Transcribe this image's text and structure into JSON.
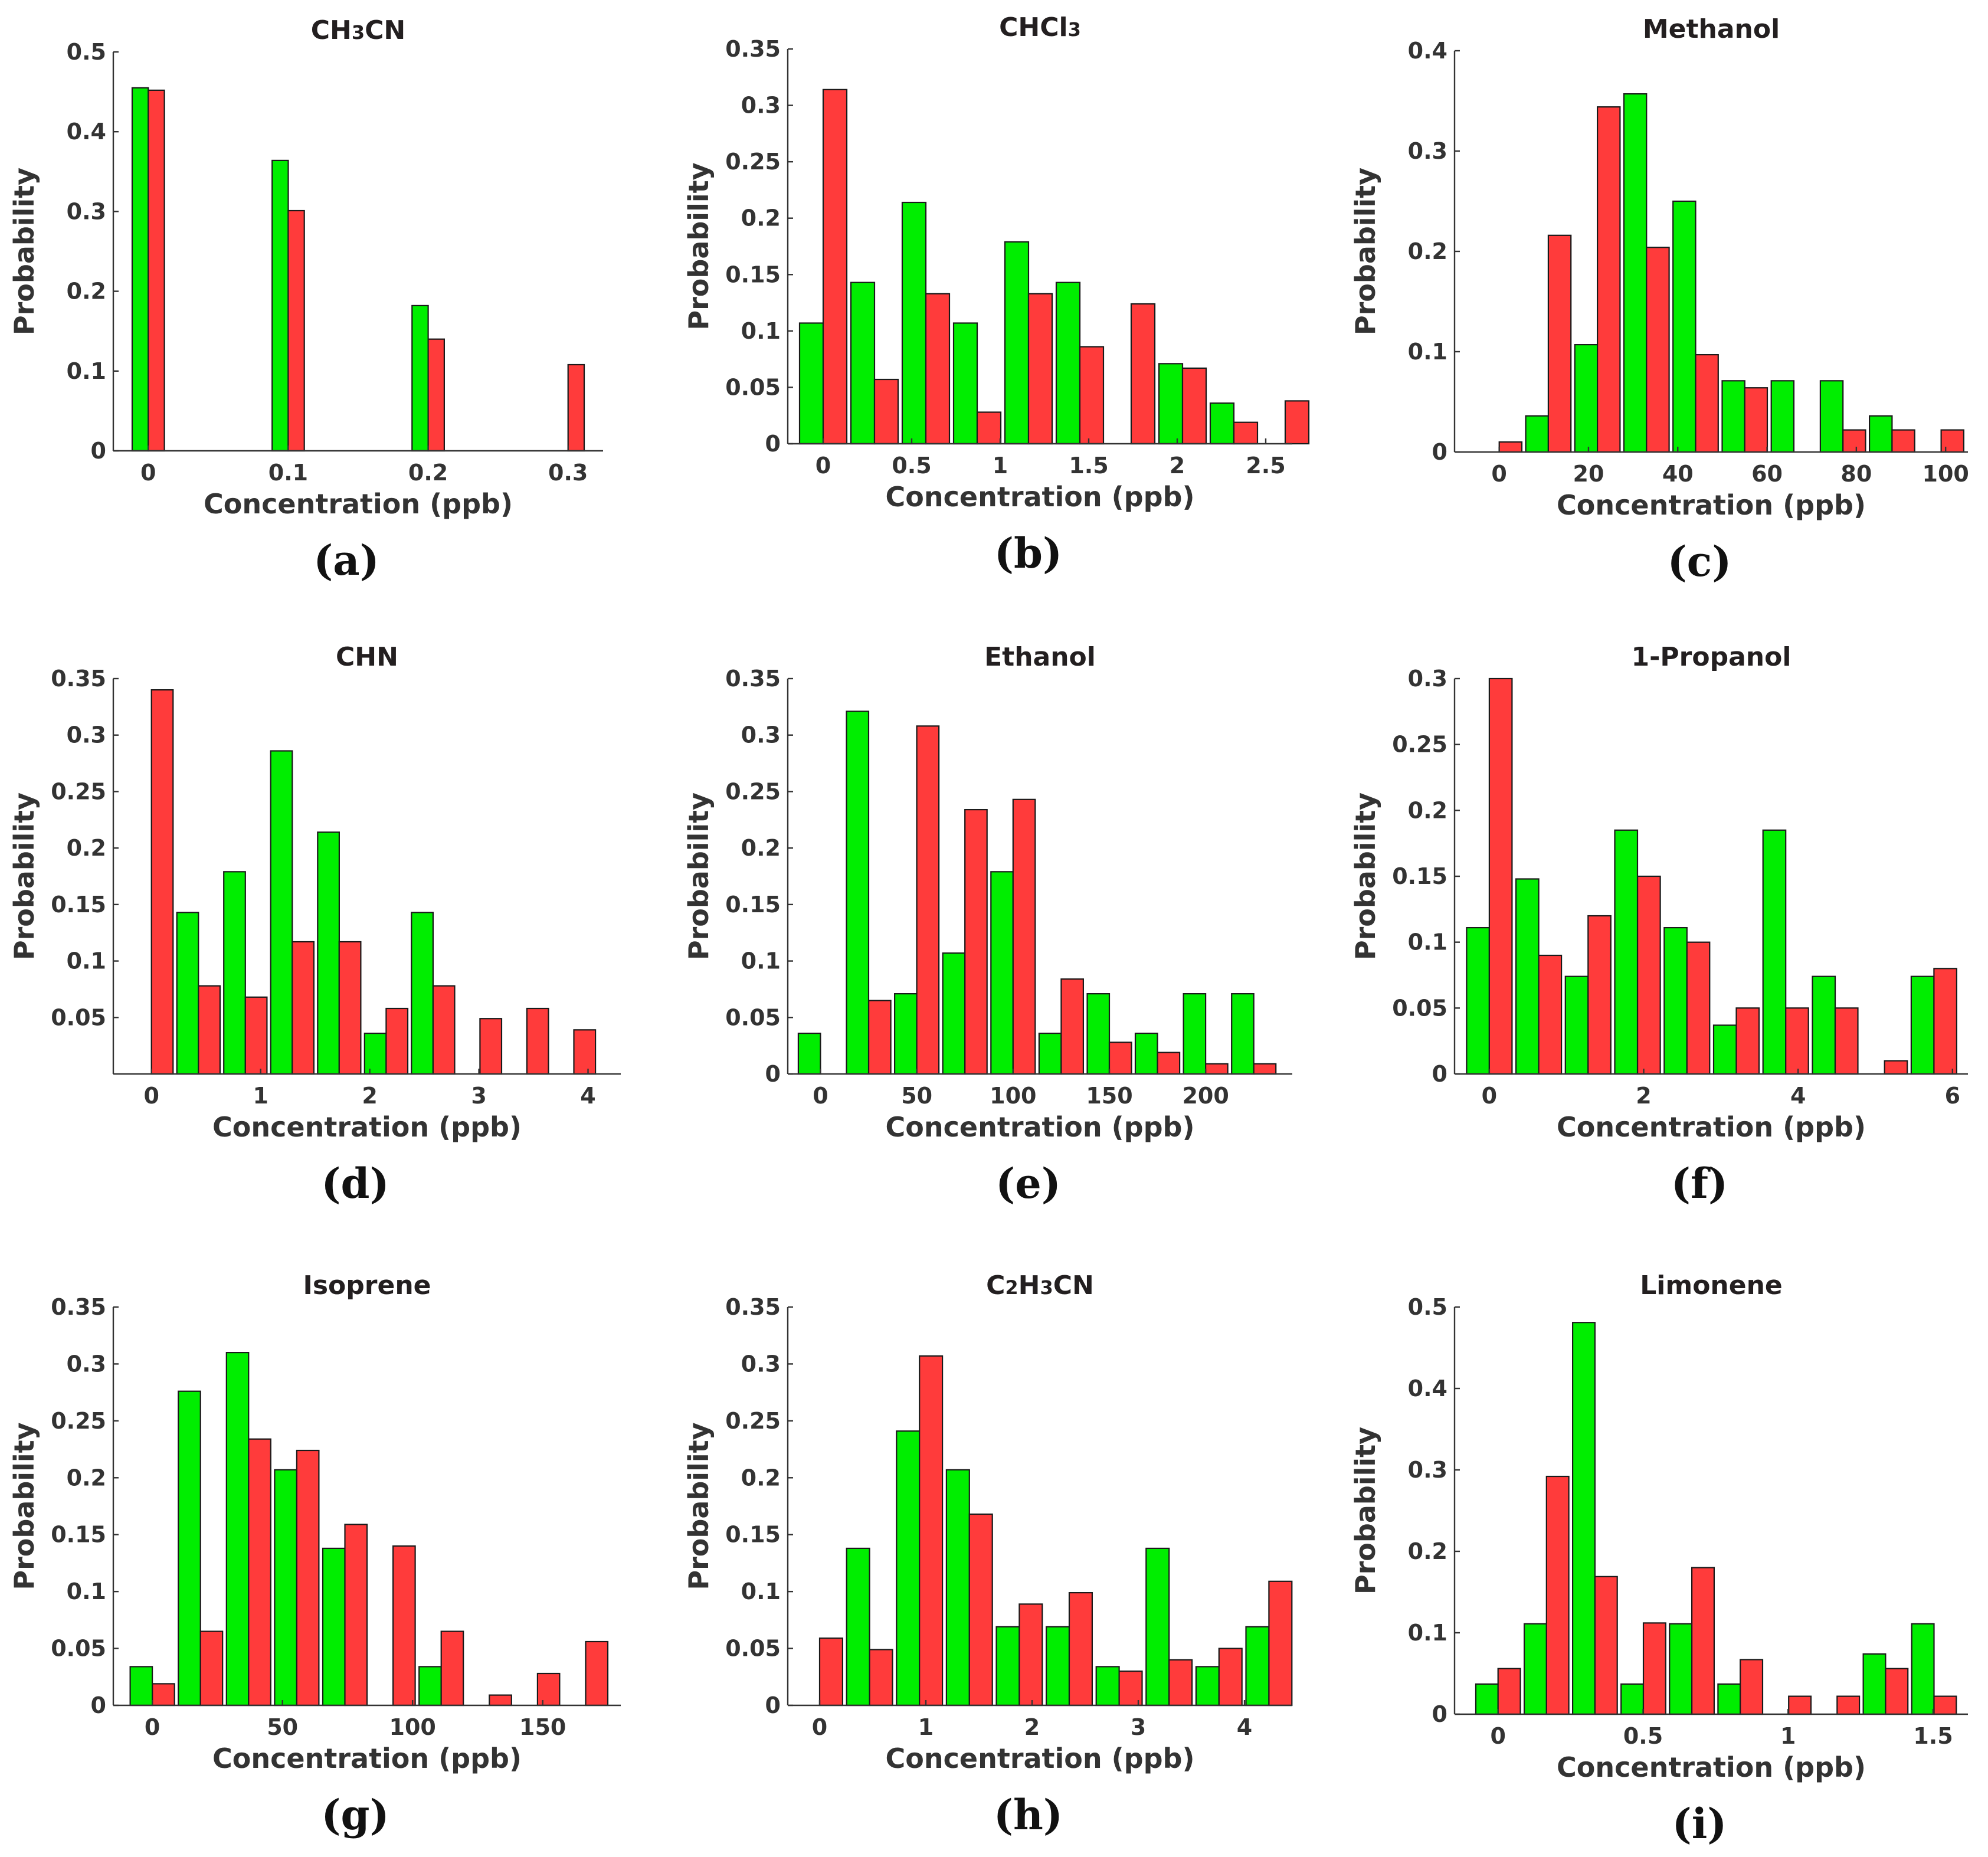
{
  "colors": {
    "green": "#00ee00",
    "red": "#ff3b3b"
  },
  "chart_data": [
    {
      "id": "a",
      "type": "bar",
      "title": "CH3CN",
      "panel_label": "(a)",
      "xlabel": "Concentration (ppb)",
      "ylabel": "Probability",
      "xlim": [
        -0.025,
        0.325
      ],
      "ylim": [
        0,
        0.5
      ],
      "bin_width": 0.025,
      "xticks": [
        0,
        0.1,
        0.2,
        0.3
      ],
      "xtick_labels": [
        "0",
        "0.1",
        "0.2",
        "0.3"
      ],
      "yticks": [
        0,
        0.1,
        0.2,
        0.3,
        0.4,
        0.5
      ],
      "ytick_labels": [
        "0",
        "0.1",
        "0.2",
        "0.3",
        "0.4",
        "0.5"
      ],
      "series": [
        {
          "name": "green",
          "x": [
            0,
            0.1,
            0.2
          ],
          "values": [
            0.455,
            0.364,
            0.182
          ]
        },
        {
          "name": "red",
          "x": [
            0,
            0.1,
            0.2,
            0.3
          ],
          "values": [
            0.452,
            0.301,
            0.14,
            0.108
          ]
        }
      ]
    },
    {
      "id": "b",
      "type": "bar",
      "title": "CHCl3",
      "panel_label": "(b)",
      "xlabel": "Concentration (ppb)",
      "ylabel": "Probability",
      "xlim": [
        -0.2,
        2.65
      ],
      "ylim": [
        0,
        0.35
      ],
      "bin_width": 0.29,
      "xticks": [
        0,
        0.5,
        1,
        1.5,
        2,
        2.5
      ],
      "xtick_labels": [
        "0",
        "0.5",
        "1",
        "1.5",
        "2",
        "2.5"
      ],
      "yticks": [
        0,
        0.05,
        0.1,
        0.15,
        0.2,
        0.25,
        0.3,
        0.35
      ],
      "ytick_labels": [
        "0",
        "0.05",
        "0.1",
        "0.15",
        "0.2",
        "0.25",
        "0.3",
        "0.35"
      ],
      "series": [
        {
          "name": "green",
          "x": [
            0,
            0.29,
            0.58,
            0.87,
            1.16,
            1.45,
            2.03,
            2.32
          ],
          "values": [
            0.107,
            0.143,
            0.214,
            0.107,
            0.179,
            0.143,
            0.071,
            0.036
          ]
        },
        {
          "name": "red",
          "x": [
            0,
            0.29,
            0.58,
            0.87,
            1.16,
            1.45,
            1.74,
            2.03,
            2.32,
            2.61
          ],
          "values": [
            0.314,
            0.057,
            0.133,
            0.028,
            0.133,
            0.086,
            0.124,
            0.067,
            0.019,
            0.038
          ]
        }
      ]
    },
    {
      "id": "c",
      "type": "bar",
      "title": "Methanol",
      "panel_label": "(c)",
      "xlabel": "Concentration (ppb)",
      "ylabel": "Probability",
      "xlim": [
        -10,
        105
      ],
      "ylim": [
        0,
        0.4
      ],
      "bin_width": 11,
      "xticks": [
        0,
        20,
        40,
        60,
        80,
        100
      ],
      "xtick_labels": [
        "0",
        "20",
        "40",
        "60",
        "80",
        "100"
      ],
      "yticks": [
        0,
        0.1,
        0.2,
        0.3,
        0.4
      ],
      "ytick_labels": [
        "0",
        "0.1",
        "0.2",
        "0.3",
        "0.4"
      ],
      "series": [
        {
          "name": "green",
          "x": [
            11,
            22,
            33,
            44,
            55,
            66,
            77,
            88
          ],
          "values": [
            0.036,
            0.107,
            0.357,
            0.25,
            0.071,
            0.071,
            0.071,
            0.036
          ]
        },
        {
          "name": "red",
          "x": [
            0,
            11,
            22,
            33,
            44,
            55,
            77,
            88,
            99
          ],
          "values": [
            0.01,
            0.216,
            0.344,
            0.204,
            0.097,
            0.064,
            0.022,
            0.022,
            0.022
          ]
        }
      ]
    },
    {
      "id": "d",
      "type": "bar",
      "title": "CHN",
      "panel_label": "(d)",
      "xlabel": "Concentration (ppb)",
      "ylabel": "Probability",
      "xlim": [
        -0.35,
        4.3
      ],
      "ylim": [
        0,
        0.35
      ],
      "bin_width": 0.43,
      "xticks": [
        0,
        1,
        2,
        3,
        4
      ],
      "xtick_labels": [
        "0",
        "1",
        "2",
        "3",
        "4"
      ],
      "yticks": [
        0.05,
        0.1,
        0.15,
        0.2,
        0.25,
        0.3,
        0.35
      ],
      "ytick_labels": [
        "0.05",
        "0.1",
        "0.15",
        "0.2",
        "0.25",
        "0.3",
        "0.35"
      ],
      "series": [
        {
          "name": "green",
          "x": [
            0.43,
            0.86,
            1.29,
            1.72,
            2.15,
            2.58
          ],
          "values": [
            0.143,
            0.179,
            0.286,
            0.214,
            0.036,
            0.143
          ]
        },
        {
          "name": "red",
          "x": [
            0,
            0.43,
            0.86,
            1.29,
            1.72,
            2.15,
            2.58,
            3.01,
            3.44,
            3.87
          ],
          "values": [
            0.34,
            0.078,
            0.068,
            0.117,
            0.117,
            0.058,
            0.078,
            0.049,
            0.058,
            0.039
          ]
        }
      ]
    },
    {
      "id": "e",
      "type": "bar",
      "title": "Ethanol",
      "panel_label": "(e)",
      "xlabel": "Concentration (ppb)",
      "ylabel": "Probability",
      "xlim": [
        -17,
        245
      ],
      "ylim": [
        0,
        0.35
      ],
      "bin_width": 25,
      "xticks": [
        0,
        50,
        100,
        150,
        200
      ],
      "xtick_labels": [
        "0",
        "50",
        "100",
        "150",
        "200"
      ],
      "yticks": [
        0,
        0.05,
        0.1,
        0.15,
        0.2,
        0.25,
        0.3,
        0.35
      ],
      "ytick_labels": [
        "0",
        "0.05",
        "0.1",
        "0.15",
        "0.2",
        "0.25",
        "0.3",
        "0.35"
      ],
      "series": [
        {
          "name": "green",
          "x": [
            0,
            25,
            50,
            75,
            100,
            125,
            150,
            175,
            200,
            225
          ],
          "values": [
            0.036,
            0.321,
            0.071,
            0.107,
            0.179,
            0.036,
            0.071,
            0.036,
            0.071,
            0.071
          ]
        },
        {
          "name": "red",
          "x": [
            25,
            50,
            75,
            100,
            125,
            150,
            175,
            200,
            225
          ],
          "values": [
            0.065,
            0.308,
            0.234,
            0.243,
            0.084,
            0.028,
            0.019,
            0.009,
            0.009
          ]
        }
      ]
    },
    {
      "id": "f",
      "type": "bar",
      "title": "1-Propanol",
      "panel_label": "(f)",
      "xlabel": "Concentration (ppb)",
      "ylabel": "Probability",
      "xlim": [
        -0.45,
        6.2
      ],
      "ylim": [
        0,
        0.3
      ],
      "bin_width": 0.64,
      "xticks": [
        0,
        2,
        4,
        6
      ],
      "xtick_labels": [
        "0",
        "2",
        "4",
        "6"
      ],
      "yticks": [
        0,
        0.05,
        0.1,
        0.15,
        0.2,
        0.25,
        0.3
      ],
      "ytick_labels": [
        "0",
        "0.05",
        "0.1",
        "0.15",
        "0.2",
        "0.25",
        "0.3"
      ],
      "series": [
        {
          "name": "green",
          "x": [
            0,
            0.64,
            1.28,
            1.92,
            2.56,
            3.2,
            3.84,
            4.48,
            5.76
          ],
          "values": [
            0.111,
            0.148,
            0.074,
            0.185,
            0.111,
            0.037,
            0.185,
            0.074,
            0.074
          ]
        },
        {
          "name": "red",
          "x": [
            0,
            0.64,
            1.28,
            1.92,
            2.56,
            3.2,
            3.84,
            4.48,
            5.12,
            5.76
          ],
          "values": [
            0.3,
            0.09,
            0.12,
            0.15,
            0.1,
            0.05,
            0.05,
            0.05,
            0.01,
            0.08
          ]
        }
      ]
    },
    {
      "id": "g",
      "type": "bar",
      "title": "Isoprene",
      "panel_label": "(g)",
      "xlabel": "Concentration (ppb)",
      "ylabel": "Probability",
      "xlim": [
        -15,
        180
      ],
      "ylim": [
        0,
        0.35
      ],
      "bin_width": 18.5,
      "xticks": [
        0,
        50,
        100,
        150
      ],
      "xtick_labels": [
        "0",
        "50",
        "100",
        "150"
      ],
      "yticks": [
        0,
        0.05,
        0.1,
        0.15,
        0.2,
        0.25,
        0.3,
        0.35
      ],
      "ytick_labels": [
        "0",
        "0.05",
        "0.1",
        "0.15",
        "0.2",
        "0.25",
        "0.3",
        "0.35"
      ],
      "series": [
        {
          "name": "green",
          "x": [
            0,
            18.5,
            37,
            55.5,
            74,
            111
          ],
          "values": [
            0.034,
            0.276,
            0.31,
            0.207,
            0.138,
            0.034
          ]
        },
        {
          "name": "red",
          "x": [
            0,
            18.5,
            37,
            55.5,
            74,
            92.5,
            111,
            129.5,
            148,
            166.5
          ],
          "values": [
            0.019,
            0.065,
            0.234,
            0.224,
            0.159,
            0.14,
            0.065,
            0.009,
            0.028,
            0.056
          ]
        }
      ]
    },
    {
      "id": "h",
      "type": "bar",
      "title": "C2H3CN",
      "panel_label": "(h)",
      "xlabel": "Concentration (ppb)",
      "ylabel": "Probability",
      "xlim": [
        -0.3,
        4.45
      ],
      "ylim": [
        0,
        0.35
      ],
      "bin_width": 0.47,
      "xticks": [
        0,
        1,
        2,
        3,
        4
      ],
      "xtick_labels": [
        "0",
        "1",
        "2",
        "3",
        "4"
      ],
      "yticks": [
        0,
        0.05,
        0.1,
        0.15,
        0.2,
        0.25,
        0.3,
        0.35
      ],
      "ytick_labels": [
        "0",
        "0.05",
        "0.1",
        "0.15",
        "0.2",
        "0.25",
        "0.3",
        "0.35"
      ],
      "series": [
        {
          "name": "green",
          "x": [
            0.47,
            0.94,
            1.41,
            1.88,
            2.35,
            2.82,
            3.29,
            3.76,
            4.23
          ],
          "values": [
            0.138,
            0.241,
            0.207,
            0.069,
            0.069,
            0.034,
            0.138,
            0.034,
            0.069
          ]
        },
        {
          "name": "red",
          "x": [
            0,
            0.47,
            0.94,
            1.41,
            1.88,
            2.35,
            2.82,
            3.29,
            3.76,
            4.23
          ],
          "values": [
            0.059,
            0.049,
            0.307,
            0.168,
            0.089,
            0.099,
            0.03,
            0.04,
            0.05,
            0.109
          ]
        }
      ]
    },
    {
      "id": "i",
      "type": "bar",
      "title": "Limonene",
      "panel_label": "(i)",
      "xlabel": "Concentration (ppb)",
      "ylabel": "Probability",
      "xlim": [
        -0.15,
        1.62
      ],
      "ylim": [
        0,
        0.5
      ],
      "bin_width": 0.167,
      "xticks": [
        0,
        0.5,
        1,
        1.5
      ],
      "xtick_labels": [
        "0",
        "0.5",
        "1",
        "1.5"
      ],
      "yticks": [
        0,
        0.1,
        0.2,
        0.3,
        0.4,
        0.5
      ],
      "ytick_labels": [
        "0",
        "0.1",
        "0.2",
        "0.3",
        "0.4",
        "0.5"
      ],
      "series": [
        {
          "name": "green",
          "x": [
            0,
            0.167,
            0.334,
            0.501,
            0.668,
            0.835,
            1.336,
            1.503
          ],
          "values": [
            0.037,
            0.111,
            0.481,
            0.037,
            0.111,
            0.037,
            0.074,
            0.111
          ]
        },
        {
          "name": "red",
          "x": [
            0,
            0.167,
            0.334,
            0.501,
            0.668,
            0.835,
            1.002,
            1.169,
            1.336,
            1.503
          ],
          "values": [
            0.056,
            0.292,
            0.169,
            0.112,
            0.18,
            0.067,
            0.022,
            0.022,
            0.056,
            0.022
          ]
        }
      ]
    }
  ]
}
